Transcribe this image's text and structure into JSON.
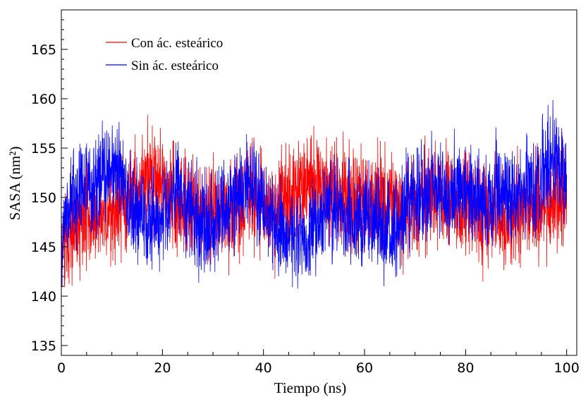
{
  "chart_data": {
    "type": "line",
    "xlabel": "Tiempo (ns)",
    "ylabel": "SASA (nm²)",
    "xlim": [
      0,
      102
    ],
    "ylim": [
      134,
      169
    ],
    "xticks": [
      0,
      20,
      40,
      60,
      80,
      100
    ],
    "xtick_labels": [
      "0",
      "20",
      "40",
      "60",
      "80",
      "100"
    ],
    "yticks": [
      135,
      140,
      145,
      150,
      155,
      160,
      165
    ],
    "ytick_labels": [
      "135",
      "140",
      "145",
      "150",
      "155",
      "160",
      "165"
    ],
    "grid": false,
    "legend_position": "top-left",
    "series": [
      {
        "name": "Con ác. esteárico",
        "color": "#ff0000",
        "x": [
          0,
          1,
          2,
          3,
          4,
          5,
          6,
          8,
          10,
          12,
          14,
          16,
          17,
          18,
          20,
          22,
          24,
          26,
          28,
          30,
          32,
          34,
          36,
          37,
          38,
          40,
          42,
          44,
          46,
          48,
          50,
          52,
          54,
          56,
          58,
          60,
          62,
          64,
          66,
          68,
          70,
          72,
          74,
          76,
          78,
          80,
          82,
          84,
          86,
          88,
          90,
          92,
          94,
          96,
          98,
          100
        ],
        "y": [
          144,
          145.5,
          146.5,
          147.5,
          147,
          148,
          147.5,
          148,
          148.5,
          149.5,
          150,
          151,
          152,
          151.5,
          151,
          150.5,
          149,
          149,
          148,
          148.5,
          149,
          148.5,
          149,
          151.5,
          150,
          149,
          148.5,
          149.5,
          150.5,
          151.5,
          152,
          151.5,
          150,
          150.5,
          150,
          149.5,
          150,
          149.5,
          149,
          148.5,
          149,
          150,
          150.5,
          150.5,
          149.5,
          149,
          148.5,
          148.5,
          148.5,
          147,
          148.5,
          149.5,
          149,
          149,
          149.5,
          150
        ],
        "noise": 2.5
      },
      {
        "name": "Sin ác. esteárico",
        "color": "#0000ff",
        "x": [
          0,
          1,
          2,
          3,
          4,
          5,
          6,
          8,
          10,
          12,
          14,
          16,
          18,
          20,
          22,
          23,
          24,
          26,
          28,
          30,
          32,
          34,
          36,
          38,
          40,
          42,
          44,
          46,
          48,
          50,
          52,
          54,
          56,
          58,
          60,
          62,
          64,
          66,
          68,
          70,
          72,
          74,
          76,
          78,
          80,
          82,
          84,
          86,
          88,
          90,
          92,
          94,
          96,
          97.5,
          99,
          100
        ],
        "y": [
          145,
          148.5,
          150,
          150.5,
          151,
          151,
          150.5,
          152,
          153,
          152,
          149,
          148,
          147.5,
          149,
          150,
          151.5,
          150,
          148,
          147,
          147.5,
          148.5,
          149.5,
          150.5,
          152,
          149.5,
          147.5,
          146.5,
          146.5,
          146,
          147,
          148.5,
          149,
          148,
          147.5,
          148,
          147.5,
          146.5,
          147,
          148.5,
          150,
          150.5,
          150.5,
          150,
          151,
          150.5,
          150.5,
          149.5,
          151,
          150,
          149.5,
          151,
          151.5,
          153,
          155,
          152.5,
          152
        ],
        "noise": 2.4
      }
    ]
  }
}
